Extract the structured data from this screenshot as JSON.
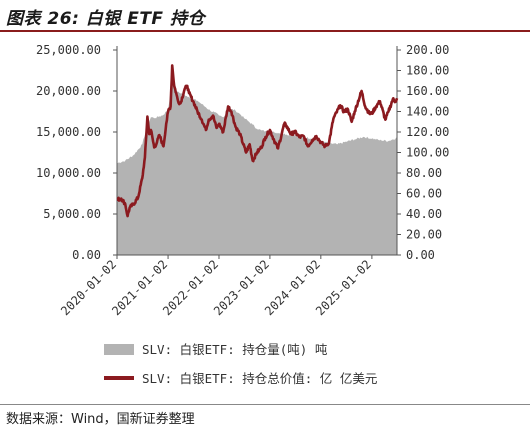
{
  "title": "图表 26:  白银 ETF 持仓",
  "source": "数据来源：Wind，国新证券整理",
  "colors": {
    "area": "#b3b3b3",
    "line": "#8b1a1f",
    "text": "#333333"
  },
  "chart_data": {
    "type": "area+line",
    "x_tick_labels": [
      "2020-01-02",
      "2021-01-02",
      "2022-01-02",
      "2023-01-02",
      "2024-01-02",
      "2025-01-02"
    ],
    "x_range": [
      "2020-01-02",
      "2025-07-01"
    ],
    "y_left": {
      "range": [
        0,
        25000
      ],
      "tick_labels": [
        "0.00",
        "5,000.00",
        "10,000.00",
        "15,000.00",
        "20,000.00",
        "25,000.00"
      ]
    },
    "y_right": {
      "range": [
        0,
        200
      ],
      "tick_labels": [
        "0.00",
        "20.00",
        "40.00",
        "60.00",
        "80.00",
        "100.00",
        "120.00",
        "140.00",
        "160.00",
        "180.00",
        "200.00"
      ]
    },
    "legend_placement": "bottom",
    "series": [
      {
        "name": "SLV: 白银ETF: 持仓量(吨)  吨",
        "type": "area",
        "axis": "left",
        "points": [
          [
            "2020-01-02",
            11200
          ],
          [
            "2020-03-01",
            11500
          ],
          [
            "2020-05-01",
            12200
          ],
          [
            "2020-07-01",
            13500
          ],
          [
            "2020-08-01",
            15500
          ],
          [
            "2020-09-01",
            16800
          ],
          [
            "2020-10-01",
            16700
          ],
          [
            "2020-11-01",
            16900
          ],
          [
            "2020-12-01",
            17100
          ],
          [
            "2021-01-02",
            17800
          ],
          [
            "2021-02-01",
            21300
          ],
          [
            "2021-02-15",
            21200
          ],
          [
            "2021-03-01",
            20100
          ],
          [
            "2021-04-01",
            19700
          ],
          [
            "2021-05-01",
            19500
          ],
          [
            "2021-06-01",
            19300
          ],
          [
            "2021-07-01",
            19000
          ],
          [
            "2021-08-01",
            18800
          ],
          [
            "2021-09-01",
            18400
          ],
          [
            "2021-10-01",
            18000
          ],
          [
            "2021-11-01",
            17600
          ],
          [
            "2021-12-01",
            17400
          ],
          [
            "2022-01-02",
            17000
          ],
          [
            "2022-02-01",
            16800
          ],
          [
            "2022-03-01",
            17500
          ],
          [
            "2022-04-01",
            17800
          ],
          [
            "2022-05-01",
            17600
          ],
          [
            "2022-06-01",
            17200
          ],
          [
            "2022-07-01",
            16700
          ],
          [
            "2022-08-01",
            16300
          ],
          [
            "2022-09-01",
            15900
          ],
          [
            "2022-10-01",
            15400
          ],
          [
            "2022-11-01",
            15200
          ],
          [
            "2022-12-01",
            15100
          ],
          [
            "2023-01-02",
            15000
          ],
          [
            "2023-03-01",
            14900
          ],
          [
            "2023-05-01",
            14700
          ],
          [
            "2023-07-01",
            14600
          ],
          [
            "2023-09-01",
            14400
          ],
          [
            "2023-11-01",
            14200
          ],
          [
            "2024-01-02",
            13900
          ],
          [
            "2024-03-01",
            13600
          ],
          [
            "2024-05-01",
            13500
          ],
          [
            "2024-07-01",
            13800
          ],
          [
            "2024-09-01",
            14100
          ],
          [
            "2024-11-01",
            14400
          ],
          [
            "2025-01-02",
            14200
          ],
          [
            "2025-03-01",
            14000
          ],
          [
            "2025-05-01",
            13900
          ],
          [
            "2025-07-01",
            14300
          ]
        ]
      },
      {
        "name": "SLV: 白银ETF: 持仓总价值: 亿  亿美元",
        "type": "line",
        "axis": "right",
        "points": [
          [
            "2020-01-02",
            54
          ],
          [
            "2020-02-01",
            55
          ],
          [
            "2020-03-01",
            50
          ],
          [
            "2020-03-18",
            38
          ],
          [
            "2020-04-01",
            46
          ],
          [
            "2020-05-01",
            50
          ],
          [
            "2020-06-01",
            56
          ],
          [
            "2020-07-01",
            75
          ],
          [
            "2020-07-20",
            95
          ],
          [
            "2020-08-07",
            135
          ],
          [
            "2020-08-20",
            118
          ],
          [
            "2020-09-01",
            122
          ],
          [
            "2020-09-25",
            105
          ],
          [
            "2020-10-15",
            110
          ],
          [
            "2020-11-01",
            117
          ],
          [
            "2020-11-30",
            106
          ],
          [
            "2020-12-20",
            128
          ],
          [
            "2021-01-02",
            140
          ],
          [
            "2021-01-20",
            145
          ],
          [
            "2021-02-01",
            185
          ],
          [
            "2021-02-15",
            165
          ],
          [
            "2021-03-01",
            158
          ],
          [
            "2021-03-15",
            150
          ],
          [
            "2021-04-01",
            148
          ],
          [
            "2021-05-01",
            162
          ],
          [
            "2021-05-20",
            165
          ],
          [
            "2021-06-01",
            158
          ],
          [
            "2021-07-01",
            150
          ],
          [
            "2021-08-01",
            140
          ],
          [
            "2021-09-01",
            132
          ],
          [
            "2021-09-30",
            122
          ],
          [
            "2021-10-20",
            132
          ],
          [
            "2021-11-20",
            136
          ],
          [
            "2021-12-15",
            124
          ],
          [
            "2022-01-02",
            128
          ],
          [
            "2022-02-01",
            120
          ],
          [
            "2022-03-08",
            145
          ],
          [
            "2022-04-01",
            140
          ],
          [
            "2022-05-01",
            125
          ],
          [
            "2022-06-01",
            118
          ],
          [
            "2022-07-15",
            100
          ],
          [
            "2022-08-10",
            108
          ],
          [
            "2022-09-01",
            92
          ],
          [
            "2022-10-01",
            100
          ],
          [
            "2022-11-01",
            105
          ],
          [
            "2022-12-01",
            115
          ],
          [
            "2023-01-02",
            122
          ],
          [
            "2023-02-01",
            112
          ],
          [
            "2023-03-01",
            104
          ],
          [
            "2023-04-15",
            128
          ],
          [
            "2023-05-01",
            126
          ],
          [
            "2023-06-01",
            118
          ],
          [
            "2023-07-01",
            120
          ],
          [
            "2023-08-01",
            115
          ],
          [
            "2023-09-01",
            116
          ],
          [
            "2023-10-01",
            106
          ],
          [
            "2023-11-01",
            112
          ],
          [
            "2023-12-01",
            116
          ],
          [
            "2024-01-02",
            110
          ],
          [
            "2024-02-01",
            106
          ],
          [
            "2024-03-01",
            110
          ],
          [
            "2024-04-01",
            133
          ],
          [
            "2024-05-20",
            146
          ],
          [
            "2024-06-15",
            140
          ],
          [
            "2024-07-15",
            142
          ],
          [
            "2024-08-10",
            130
          ],
          [
            "2024-09-01",
            140
          ],
          [
            "2024-10-20",
            160
          ],
          [
            "2024-11-15",
            145
          ],
          [
            "2024-12-15",
            138
          ],
          [
            "2025-01-02",
            138
          ],
          [
            "2025-02-01",
            145
          ],
          [
            "2025-03-01",
            150
          ],
          [
            "2025-04-08",
            132
          ],
          [
            "2025-05-01",
            140
          ],
          [
            "2025-06-01",
            152
          ],
          [
            "2025-06-20",
            150
          ],
          [
            "2025-07-01",
            153
          ]
        ]
      }
    ]
  }
}
